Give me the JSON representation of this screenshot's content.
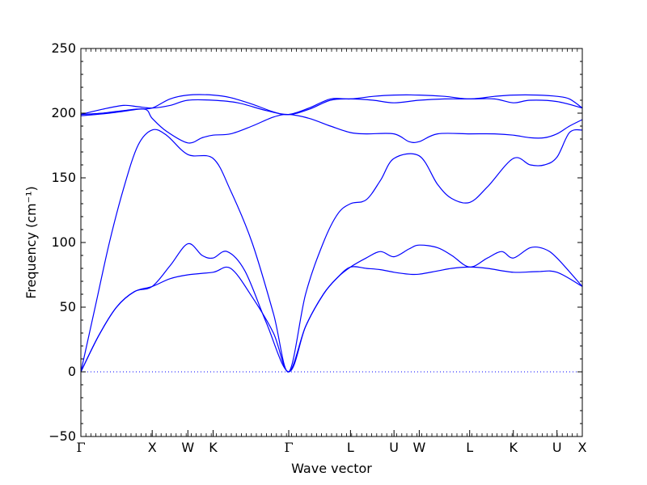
{
  "chart_data": {
    "type": "line",
    "title": "",
    "xlabel": "Wave vector",
    "ylabel": "Frequency (cm⁻¹)",
    "ylim": [
      -50,
      250
    ],
    "yticks": [
      -50,
      0,
      50,
      100,
      150,
      200,
      250
    ],
    "zero_line": true,
    "grid": false,
    "legend": "none",
    "line_color": "#0000ff",
    "high_symmetry_points": [
      {
        "label": "Γ",
        "x": 0.0
      },
      {
        "label": "X",
        "x": 1.0
      },
      {
        "label": "W",
        "x": 1.5
      },
      {
        "label": "K",
        "x": 1.854
      },
      {
        "label": "Γ",
        "x": 2.914
      },
      {
        "label": "L",
        "x": 3.78
      },
      {
        "label": "U",
        "x": 4.39
      },
      {
        "label": "W",
        "x": 4.744
      },
      {
        "label": "L",
        "x": 5.451
      },
      {
        "label": "K",
        "x": 6.063
      },
      {
        "label": "U",
        "x": 6.675
      },
      {
        "label": "X",
        "x": 7.03
      }
    ],
    "series": [
      {
        "x": [
          0,
          0.25,
          0.5,
          0.75,
          1.0,
          1.25,
          1.5,
          1.854,
          2.1,
          2.4,
          2.7,
          2.914,
          3.15,
          3.4,
          3.6,
          3.78,
          4.0,
          4.2,
          4.39,
          4.6,
          4.744,
          5.0,
          5.2,
          5.451,
          5.7,
          6.063,
          6.4,
          6.675,
          7.03
        ],
        "values": [
          0,
          28,
          50,
          62,
          66,
          72,
          75,
          77,
          80,
          58,
          30,
          0,
          35,
          60,
          73,
          81,
          80,
          79,
          77,
          75.5,
          75.5,
          78,
          80,
          81,
          80,
          77,
          77.5,
          77,
          66
        ]
      },
      {
        "x": [
          0,
          0.25,
          0.5,
          0.75,
          1.0,
          1.25,
          1.5,
          1.7,
          1.854,
          2.05,
          2.3,
          2.6,
          2.914,
          3.15,
          3.4,
          3.6,
          3.78,
          4.0,
          4.2,
          4.39,
          4.6,
          4.744,
          5.0,
          5.2,
          5.451,
          5.7,
          5.9,
          6.063,
          6.3,
          6.5,
          6.675,
          7.03
        ],
        "values": [
          0,
          28,
          50,
          62,
          66,
          82,
          99,
          90,
          88,
          93,
          78,
          38,
          0,
          35,
          60,
          73,
          81,
          88,
          93,
          89,
          95,
          98,
          96,
          90,
          81,
          88,
          93,
          88,
          96,
          95,
          88,
          66
        ]
      },
      {
        "x": [
          0,
          0.2,
          0.4,
          0.6,
          0.8,
          1.0,
          1.2,
          1.5,
          1.854,
          2.1,
          2.4,
          2.7,
          2.914,
          3.15,
          3.4,
          3.6,
          3.78,
          4.0,
          4.2,
          4.39,
          4.744,
          5.0,
          5.2,
          5.451,
          5.7,
          6.063,
          6.3,
          6.5,
          6.675,
          6.85,
          7.03
        ],
        "values": [
          0,
          50,
          100,
          142,
          175,
          187,
          183,
          168,
          165,
          140,
          100,
          45,
          0,
          60,
          100,
          122,
          130,
          133,
          148,
          165,
          167,
          145,
          134,
          131,
          143,
          165,
          160,
          160,
          166,
          185,
          187
        ]
      },
      {
        "x": [
          0,
          0.3,
          0.6,
          0.9,
          1.0,
          1.2,
          1.5,
          1.7,
          1.854,
          2.1,
          2.4,
          2.7,
          2.914,
          3.2,
          3.5,
          3.78,
          4.0,
          4.39,
          4.6,
          4.744,
          5.0,
          5.451,
          5.8,
          6.063,
          6.3,
          6.5,
          6.675,
          6.85,
          7.03
        ],
        "values": [
          199,
          200,
          202,
          203,
          196,
          186,
          177,
          181,
          183,
          184,
          190,
          197,
          199,
          196,
          190,
          185,
          184,
          184,
          178,
          178,
          184,
          184,
          184,
          183,
          181,
          181,
          184,
          190,
          195
        ]
      },
      {
        "x": [
          0,
          0.3,
          0.6,
          0.8,
          1.0,
          1.25,
          1.5,
          1.854,
          2.2,
          2.6,
          2.914,
          3.2,
          3.5,
          3.78,
          4.1,
          4.39,
          4.744,
          5.1,
          5.451,
          5.8,
          6.063,
          6.3,
          6.675,
          7.03
        ],
        "values": [
          199,
          203,
          206,
          205,
          204,
          206,
          210,
          210,
          208,
          202,
          199,
          203,
          210,
          211,
          210,
          208,
          210,
          211,
          211,
          211,
          208,
          210,
          209,
          204
        ]
      },
      {
        "x": [
          0,
          0.4,
          0.8,
          1.0,
          1.25,
          1.5,
          1.854,
          2.1,
          2.4,
          2.7,
          2.914,
          3.2,
          3.5,
          3.78,
          4.1,
          4.39,
          4.744,
          5.1,
          5.451,
          5.8,
          6.063,
          6.4,
          6.675,
          6.85,
          7.03
        ],
        "values": [
          198,
          200,
          203,
          204,
          211,
          214,
          214,
          212,
          207,
          201,
          199,
          204,
          211,
          211,
          213,
          214,
          214,
          213,
          211,
          213,
          214,
          214,
          213,
          211,
          204
        ]
      }
    ]
  }
}
